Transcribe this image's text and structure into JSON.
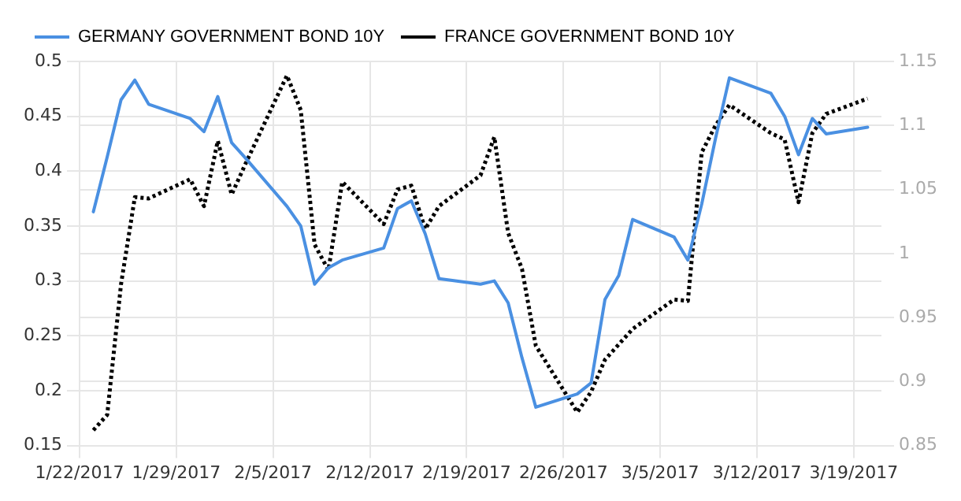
{
  "chart_data": {
    "type": "line",
    "legend": "top left",
    "grid": true,
    "marker": "none",
    "xlim": [
      "2017-01-22",
      "2017-03-21"
    ],
    "xticks": [
      {
        "value": "2017-01-22",
        "label": "1/22/2017"
      },
      {
        "value": "2017-01-29",
        "label": "1/29/2017"
      },
      {
        "value": "2017-02-05",
        "label": "2/5/2017"
      },
      {
        "value": "2017-02-12",
        "label": "2/12/2017"
      },
      {
        "value": "2017-02-19",
        "label": "2/19/2017"
      },
      {
        "value": "2017-02-26",
        "label": "2/26/2017"
      },
      {
        "value": "2017-03-05",
        "label": "3/5/2017"
      },
      {
        "value": "2017-03-12",
        "label": "3/12/2017"
      },
      {
        "value": "2017-03-19",
        "label": "3/19/2017"
      }
    ],
    "ylim": [
      0.15,
      0.5
    ],
    "yticks": [
      0.15,
      0.2,
      0.25,
      0.3,
      0.35,
      0.4,
      0.45,
      0.5
    ],
    "y2lim": [
      0.85,
      1.15
    ],
    "y2ticks": [
      0.85,
      0.9,
      0.95,
      1,
      1.05,
      1.1,
      1.15
    ],
    "x": [
      "2017-01-23",
      "2017-01-24",
      "2017-01-25",
      "2017-01-26",
      "2017-01-27",
      "2017-01-30",
      "2017-01-31",
      "2017-02-01",
      "2017-02-02",
      "2017-02-03",
      "2017-02-06",
      "2017-02-07",
      "2017-02-08",
      "2017-02-09",
      "2017-02-10",
      "2017-02-13",
      "2017-02-14",
      "2017-02-15",
      "2017-02-16",
      "2017-02-17",
      "2017-02-20",
      "2017-02-21",
      "2017-02-22",
      "2017-02-23",
      "2017-02-24",
      "2017-02-27",
      "2017-02-28",
      "2017-03-01",
      "2017-03-02",
      "2017-03-03",
      "2017-03-06",
      "2017-03-07",
      "2017-03-08",
      "2017-03-09",
      "2017-03-10",
      "2017-03-13",
      "2017-03-14",
      "2017-03-15",
      "2017-03-16",
      "2017-03-17",
      "2017-03-20"
    ],
    "series": [
      {
        "name": "GERMANY GOVERNMENT BOND 10Y",
        "color": "#4a90e2",
        "line_style": "solid",
        "values": [
          0.363,
          0.413,
          0.465,
          0.483,
          0.461,
          0.448,
          0.436,
          0.468,
          0.426,
          0.412,
          0.368,
          0.35,
          0.297,
          0.312,
          0.319,
          0.33,
          0.366,
          0.373,
          0.343,
          0.302,
          0.297,
          0.3,
          0.28,
          0.23,
          0.185,
          0.197,
          0.207,
          0.283,
          0.305,
          0.356,
          0.34,
          0.319,
          0.37,
          0.43,
          0.485,
          0.471,
          0.45,
          0.415,
          0.448,
          0.434,
          0.44
        ]
      },
      {
        "name": "FRANCE GOVERNMENT BOND 10Y",
        "color": "#000000",
        "line_style": "dotted",
        "axis": "y2",
        "values": [
          0.862,
          0.874,
          0.976,
          1.044,
          1.043,
          1.058,
          1.037,
          1.088,
          1.046,
          1.07,
          1.139,
          1.112,
          1.007,
          0.987,
          1.056,
          1.023,
          1.05,
          1.053,
          1.019,
          1.037,
          1.061,
          1.091,
          1.016,
          0.988,
          0.928,
          0.876,
          0.892,
          0.917,
          0.929,
          0.941,
          0.964,
          0.963,
          1.079,
          1.1,
          1.116,
          1.094,
          1.089,
          1.04,
          1.094,
          1.109,
          1.121
        ]
      }
    ]
  }
}
